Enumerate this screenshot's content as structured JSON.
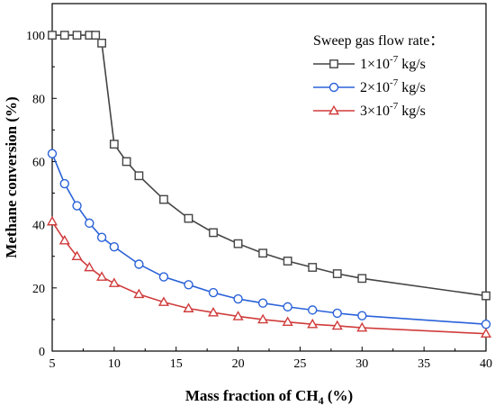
{
  "chart_data": {
    "type": "line",
    "title": "",
    "xlabel": "Mass fraction of CH",
    "xlabel_sub": "4",
    "xlabel_tail": " (%)",
    "ylabel": "Methane conversion (%)",
    "xlim": [
      5,
      40
    ],
    "ylim": [
      0,
      110
    ],
    "xticks": [
      5,
      10,
      15,
      20,
      25,
      30,
      35,
      40
    ],
    "yticks": [
      0,
      20,
      40,
      60,
      80,
      100
    ],
    "grid": false,
    "legend": {
      "title": "Sweep gas flow rate：",
      "placement": "top-right"
    },
    "series": [
      {
        "name": "1×10",
        "name_exp": "-7",
        "name_unit": " kg/s",
        "color": "#444444",
        "marker": "square",
        "x": [
          5,
          6,
          7,
          8,
          8.5,
          9,
          10,
          11,
          12,
          14,
          16,
          18,
          20,
          22,
          24,
          26,
          28,
          30,
          40
        ],
        "y": [
          100,
          100,
          100,
          100,
          100,
          97.5,
          65.5,
          60,
          55.5,
          48,
          42,
          37.5,
          34,
          31,
          28.5,
          26.5,
          24.5,
          23,
          17.5
        ]
      },
      {
        "name": "2×10",
        "name_exp": "-7",
        "name_unit": " kg/s",
        "color": "#2a62d8",
        "marker": "circle",
        "x": [
          5,
          6,
          7,
          8,
          9,
          10,
          12,
          14,
          16,
          18,
          20,
          22,
          24,
          26,
          28,
          30,
          40
        ],
        "y": [
          62.5,
          53,
          46,
          40.5,
          36,
          33,
          27.5,
          23.5,
          21,
          18.5,
          16.5,
          15.2,
          14,
          13,
          12,
          11.2,
          8.5
        ]
      },
      {
        "name": "3×10",
        "name_exp": "-7",
        "name_unit": " kg/s",
        "color": "#d03c3c",
        "marker": "triangle",
        "x": [
          5,
          6,
          7,
          8,
          9,
          10,
          12,
          14,
          16,
          18,
          20,
          22,
          24,
          26,
          28,
          30,
          40
        ],
        "y": [
          41,
          35,
          30,
          26.5,
          23.5,
          21.5,
          18,
          15.5,
          13.5,
          12.2,
          11,
          10,
          9.2,
          8.5,
          8,
          7.4,
          5.5
        ]
      }
    ]
  }
}
